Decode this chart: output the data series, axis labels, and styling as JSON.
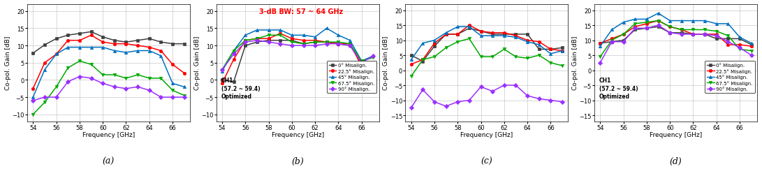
{
  "freq": [
    54,
    55,
    56,
    57,
    58,
    59,
    60,
    61,
    62,
    63,
    64,
    65,
    66,
    67
  ],
  "a": {
    "black": [
      7.8,
      10.2,
      12.0,
      13.0,
      13.5,
      14.0,
      12.5,
      11.5,
      11.0,
      11.5,
      12.0,
      11.0,
      10.5,
      10.5
    ],
    "red": [
      -2.5,
      5.0,
      7.5,
      11.5,
      11.5,
      13.0,
      11.0,
      10.5,
      10.5,
      10.0,
      9.5,
      8.5,
      4.5,
      2.0
    ],
    "blue": [
      -5.0,
      3.0,
      7.5,
      9.5,
      9.5,
      9.5,
      9.5,
      8.5,
      8.0,
      8.5,
      8.5,
      7.0,
      -1.0,
      -2.0
    ],
    "green": [
      -10.0,
      -6.5,
      -2.0,
      3.5,
      5.5,
      4.5,
      1.5,
      1.5,
      0.5,
      1.5,
      0.5,
      0.5,
      -3.0,
      -4.5
    ],
    "purple": [
      -6.0,
      -5.0,
      -5.0,
      -0.5,
      1.0,
      0.5,
      -1.0,
      -2.0,
      -2.5,
      -2.0,
      -3.0,
      -5.0,
      -5.0,
      -5.0
    ]
  },
  "b": {
    "black": [
      0.0,
      -0.5,
      10.0,
      11.0,
      11.5,
      11.5,
      11.5,
      10.5,
      11.0,
      11.0,
      10.5,
      10.0,
      5.0,
      2.0
    ],
    "red": [
      -1.0,
      6.0,
      11.5,
      12.0,
      12.0,
      13.5,
      12.0,
      11.5,
      11.5,
      11.0,
      10.5,
      10.5,
      4.0,
      3.5
    ],
    "blue": [
      2.5,
      8.5,
      13.0,
      14.5,
      14.5,
      14.5,
      13.0,
      13.0,
      12.5,
      15.0,
      13.0,
      11.5,
      5.5,
      7.0
    ],
    "green": [
      3.0,
      8.5,
      11.5,
      12.0,
      13.0,
      13.0,
      11.0,
      10.5,
      11.0,
      11.0,
      11.0,
      10.5,
      5.5,
      6.5
    ],
    "purple": [
      3.0,
      7.5,
      11.0,
      11.5,
      11.0,
      10.5,
      10.0,
      10.0,
      10.0,
      10.5,
      10.5,
      10.0,
      5.0,
      7.0
    ]
  },
  "c": {
    "black": [
      5.0,
      3.0,
      8.0,
      12.0,
      12.0,
      14.0,
      13.0,
      12.0,
      12.0,
      12.0,
      12.0,
      7.0,
      7.0,
      7.5
    ],
    "red": [
      2.0,
      3.5,
      9.0,
      12.0,
      12.0,
      15.0,
      13.0,
      12.5,
      12.5,
      11.5,
      10.0,
      9.5,
      7.0,
      6.5
    ],
    "blue": [
      3.5,
      9.0,
      10.0,
      12.5,
      14.5,
      14.5,
      11.5,
      11.5,
      11.5,
      11.0,
      9.5,
      8.5,
      5.5,
      6.5
    ],
    "green": [
      -2.0,
      3.5,
      4.5,
      7.5,
      9.5,
      10.5,
      4.5,
      4.5,
      7.0,
      4.5,
      4.0,
      5.0,
      2.5,
      1.5
    ],
    "purple": [
      -12.5,
      -6.5,
      -10.5,
      -12.0,
      -10.5,
      -10.0,
      -5.5,
      -7.0,
      -5.0,
      -5.0,
      -8.5,
      -9.5,
      -10.0,
      -10.5
    ]
  },
  "d": {
    "black": [
      9.0,
      9.5,
      10.0,
      13.5,
      14.0,
      14.5,
      12.5,
      12.5,
      12.0,
      12.0,
      10.5,
      10.5,
      10.5,
      8.5
    ],
    "red": [
      9.0,
      10.5,
      12.0,
      14.5,
      15.5,
      16.5,
      14.5,
      13.5,
      12.0,
      12.0,
      12.0,
      8.5,
      8.5,
      8.0
    ],
    "blue": [
      8.0,
      13.5,
      16.0,
      17.0,
      17.0,
      19.0,
      16.5,
      16.5,
      16.5,
      16.5,
      15.5,
      15.5,
      11.0,
      9.0
    ],
    "green": [
      4.5,
      10.0,
      12.0,
      15.5,
      16.0,
      16.5,
      14.5,
      13.5,
      13.5,
      13.5,
      13.0,
      11.5,
      7.0,
      6.5
    ],
    "purple": [
      2.5,
      9.5,
      9.5,
      14.0,
      14.0,
      15.0,
      12.5,
      12.0,
      12.0,
      12.0,
      11.5,
      9.5,
      7.5,
      5.0
    ]
  },
  "colors": {
    "black": "#3f3f3f",
    "red": "#ff0000",
    "blue": "#0070c0",
    "green": "#00aa00",
    "purple": "#9b30ff"
  },
  "markers": {
    "black": "s",
    "red": "o",
    "blue": "^",
    "green": "v",
    "purple": "D"
  },
  "legend_labels": [
    "0° Misalign.",
    "22.5° Misalign.",
    "45° Misalign.",
    "67.5° Misalign.",
    "90° Misalign."
  ],
  "legend_colors": [
    "#3f3f3f",
    "#ff0000",
    "#0070c0",
    "#00aa00",
    "#9b30ff"
  ],
  "legend_markers": [
    "s",
    "o",
    "^",
    "v",
    "D"
  ],
  "ylabel": "Co-pol. Gain [dB]",
  "xlabel": "Frequency [GHz]",
  "xlim": [
    53.5,
    67.5
  ],
  "xticks": [
    54,
    56,
    58,
    60,
    62,
    64,
    66
  ],
  "a_ylim": [
    -12,
    22
  ],
  "a_yticks": [
    -10,
    -5,
    0,
    5,
    10,
    15,
    20
  ],
  "b_ylim": [
    -12,
    22
  ],
  "b_yticks": [
    -10,
    -5,
    0,
    5,
    10,
    15,
    20
  ],
  "c_ylim": [
    -17,
    22
  ],
  "c_yticks": [
    -15,
    -10,
    -5,
    0,
    5,
    10,
    15,
    20
  ],
  "d_ylim": [
    -17,
    22
  ],
  "d_yticks": [
    -15,
    -10,
    -5,
    0,
    5,
    10,
    15,
    20
  ],
  "panel_labels": [
    "(a)",
    "(b)",
    "(c)",
    "(d)"
  ],
  "bw_text": "3-dB BW: 57 ~ 64 GHz",
  "ch1_text": "CH1\n(57.2 ~ 59.4)\nOptimized"
}
